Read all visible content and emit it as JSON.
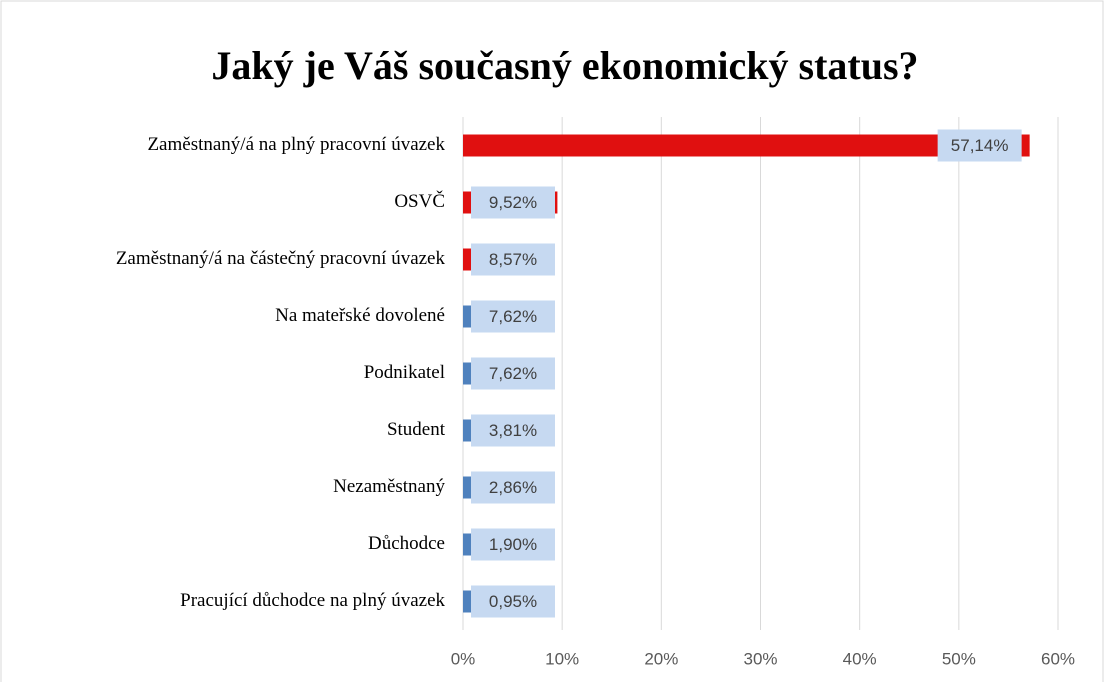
{
  "chart_data": {
    "type": "bar",
    "orientation": "horizontal",
    "title": "Jaký je Váš současný ekonomický status?",
    "categories": [
      "Zaměstnaný/á na plný pracovní úvazek",
      "OSVČ",
      "Zaměstnaný/á na částečný pracovní úvazek",
      "Na mateřské dovolené",
      "Podnikatel",
      "Student",
      "Nezaměstnaný",
      "Důchodce",
      "Pracující důchodce na plný úvazek"
    ],
    "values": [
      57.14,
      9.52,
      8.57,
      7.62,
      7.62,
      3.81,
      2.86,
      1.9,
      0.95
    ],
    "value_labels": [
      "57,14%",
      "9,52%",
      "8,57%",
      "7,62%",
      "7,62%",
      "3,81%",
      "2,86%",
      "1,90%",
      "0,95%"
    ],
    "colors": [
      "#e01010",
      "#e01010",
      "#e01010",
      "#4f81bd",
      "#4f81bd",
      "#4f81bd",
      "#4f81bd",
      "#4f81bd",
      "#4f81bd"
    ],
    "xlim": [
      0,
      60
    ],
    "xticks": [
      {
        "value": 0,
        "label": "0%"
      },
      {
        "value": 10,
        "label": "10%"
      },
      {
        "value": 20,
        "label": "20%"
      },
      {
        "value": 30,
        "label": "30%"
      },
      {
        "value": 40,
        "label": "40%"
      },
      {
        "value": 50,
        "label": "50%"
      },
      {
        "value": 60,
        "label": "60%"
      }
    ],
    "grid": true
  }
}
